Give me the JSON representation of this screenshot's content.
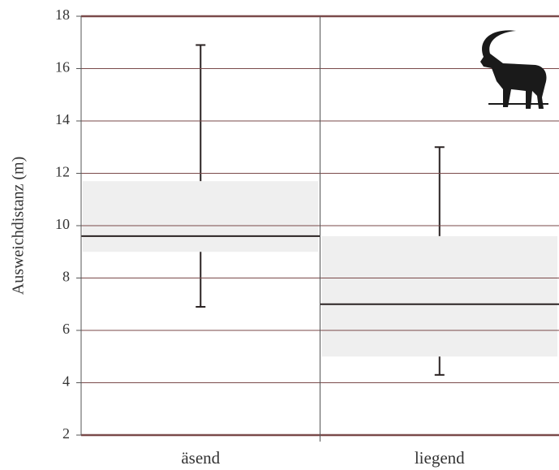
{
  "chart_data": {
    "type": "box",
    "y_label": "Ausweichdistanz (m)",
    "categories": [
      "äsend",
      "liegend"
    ],
    "q1": [
      9.0,
      5.0
    ],
    "median": [
      9.6,
      7.0
    ],
    "q3": [
      11.7,
      9.6
    ],
    "whisker_low": [
      6.9,
      4.3
    ],
    "whisker_high": [
      16.9,
      13.0
    ],
    "box_color": "#efefef",
    "line_color": "#2a2222",
    "grid_color": "#7a4a4a",
    "ylim": [
      2,
      18
    ],
    "yticks": [
      2,
      4,
      6,
      8,
      10,
      12,
      14,
      16,
      18
    ],
    "grid": true
  }
}
